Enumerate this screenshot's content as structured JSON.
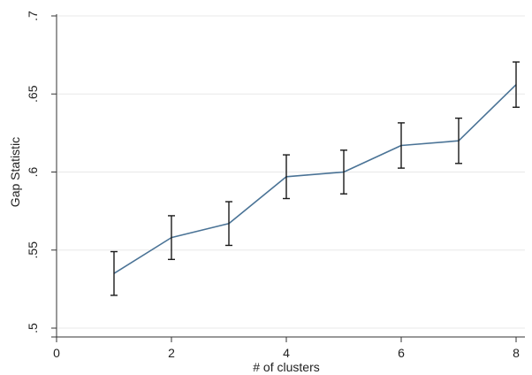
{
  "chart_data": {
    "type": "line",
    "xlabel": "# of clusters",
    "ylabel": "Gap Statistic",
    "xlim": [
      0,
      8
    ],
    "ylim": [
      0.5,
      0.7
    ],
    "x_ticks": [
      {
        "value": 0,
        "label": "0"
      },
      {
        "value": 2,
        "label": "2"
      },
      {
        "value": 4,
        "label": "4"
      },
      {
        "value": 6,
        "label": "6"
      },
      {
        "value": 8,
        "label": "8"
      }
    ],
    "y_ticks": [
      {
        "value": 0.5,
        "label": ".5"
      },
      {
        "value": 0.55,
        "label": ".55"
      },
      {
        "value": 0.6,
        "label": ".6"
      },
      {
        "value": 0.65,
        "label": ".65"
      },
      {
        "value": 0.7,
        "label": ".7"
      }
    ],
    "grid": "horizontal",
    "series": [
      {
        "x": [
          1,
          2,
          3,
          4,
          5,
          6,
          7,
          8
        ],
        "y": [
          0.535,
          0.558,
          0.567,
          0.597,
          0.6,
          0.617,
          0.62,
          0.656
        ],
        "error": [
          0.014,
          0.014,
          0.014,
          0.014,
          0.014,
          0.0145,
          0.0145,
          0.0145
        ],
        "color": "#4a7396"
      }
    ],
    "colors": {
      "axis": "#333333",
      "grid": "#e8e8e8",
      "errorbar": "#1a1a1a"
    }
  }
}
